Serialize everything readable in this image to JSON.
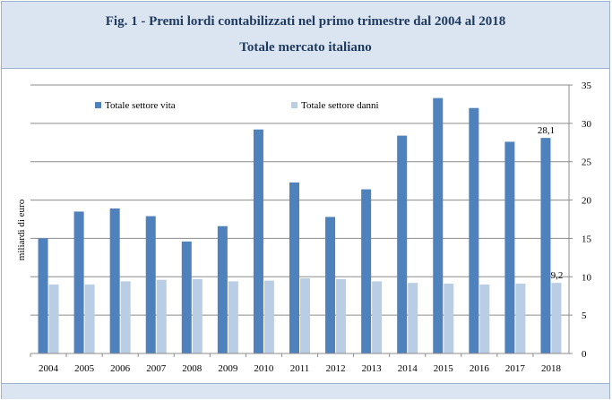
{
  "header": {
    "title": "Fig. 1 - Premi lordi contabilizzati nel primo trimestre dal 2004 al 2018",
    "subtitle": "Totale mercato italiano"
  },
  "colors": {
    "header_bg": "#dbe5f1",
    "header_text": "#1f3a5f",
    "series_vita": "#4f81bd",
    "series_danni": "#b9cde5"
  },
  "chart_data": {
    "type": "bar",
    "ylabel": "miliardi di euro",
    "ylim": [
      0,
      35
    ],
    "yticks": [
      0,
      5,
      10,
      15,
      20,
      25,
      30,
      35
    ],
    "y_axis_position": "right",
    "grid": true,
    "legend_position": "top",
    "categories": [
      "2004",
      "2005",
      "2006",
      "2007",
      "2008",
      "2009",
      "2010",
      "2011",
      "2012",
      "2013",
      "2014",
      "2015",
      "2016",
      "2017",
      "2018"
    ],
    "series": [
      {
        "name": "Totale settore vita",
        "color": "#4f81bd",
        "values": [
          15.0,
          18.5,
          18.9,
          17.9,
          14.6,
          16.6,
          29.2,
          22.3,
          17.8,
          21.4,
          28.4,
          33.3,
          32.0,
          27.6,
          28.1
        ]
      },
      {
        "name": "Totale settore danni",
        "color": "#b9cde5",
        "values": [
          9.0,
          9.0,
          9.4,
          9.6,
          9.7,
          9.4,
          9.5,
          9.8,
          9.7,
          9.4,
          9.2,
          9.1,
          9.0,
          9.1,
          9.2
        ]
      }
    ],
    "annotations": [
      {
        "series": 0,
        "category": "2018",
        "text": "28,1"
      },
      {
        "series": 1,
        "category": "2018",
        "text": "9,2"
      }
    ]
  }
}
